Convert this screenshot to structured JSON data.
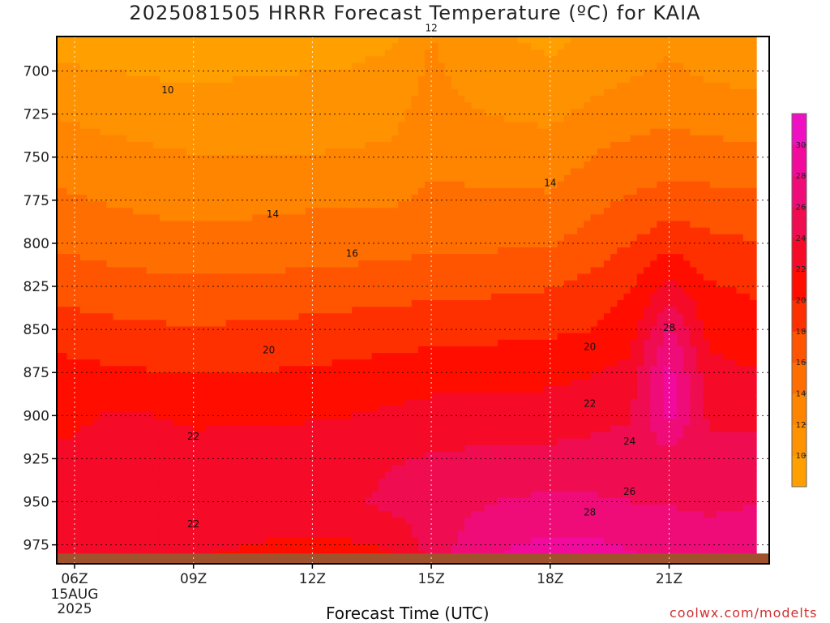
{
  "title": "2025081505 HRRR Forecast Temperature (ºC) for KAIA",
  "xlabel": "Forecast Time (UTC)",
  "credit": "coolwx.com/modelts",
  "chart_data": {
    "type": "heatmap",
    "title": "2025081505 HRRR Forecast Temperature (ºC) for KAIA",
    "xlabel": "Forecast Time (UTC)",
    "ylabel": "",
    "x_hours": [
      5,
      6,
      7,
      8,
      9,
      10,
      11,
      12,
      13,
      14,
      15,
      16,
      17,
      18,
      19,
      20,
      21,
      22,
      23
    ],
    "x_ticks": [
      {
        "hour": 6,
        "label": "06Z",
        "sub": [
          "15AUG",
          "2025"
        ]
      },
      {
        "hour": 9,
        "label": "09Z",
        "sub": []
      },
      {
        "hour": 12,
        "label": "12Z",
        "sub": []
      },
      {
        "hour": 15,
        "label": "15Z",
        "sub": []
      },
      {
        "hour": 18,
        "label": "18Z",
        "sub": []
      },
      {
        "hour": 21,
        "label": "21Z",
        "sub": []
      }
    ],
    "y_ticks": [
      700,
      725,
      750,
      775,
      800,
      825,
      850,
      875,
      900,
      925,
      950,
      975
    ],
    "ylim": [
      680,
      986
    ],
    "y_inverted": true,
    "ground_level_hPa": 980,
    "grid": true,
    "contour_interval": 2,
    "colorbar": {
      "labels": [
        10,
        12,
        14,
        16,
        18,
        20,
        22,
        24,
        26,
        28,
        30
      ],
      "range": [
        8,
        32
      ],
      "colors": [
        "#ffa000",
        "#ff9200",
        "#ff8400",
        "#ff6e00",
        "#ff5400",
        "#ff3000",
        "#ff0e00",
        "#f50a28",
        "#ef0c50",
        "#f00c78",
        "#f20a9c",
        "#ee10c2",
        "#f81ee4"
      ]
    },
    "contour_labels": [
      {
        "text": "10",
        "hour": 8.35,
        "p": 711
      },
      {
        "text": "12",
        "hour": 15.0,
        "p": 675
      },
      {
        "text": "14",
        "hour": 11.0,
        "p": 783
      },
      {
        "text": "14",
        "hour": 18.0,
        "p": 765
      },
      {
        "text": "16",
        "hour": 13.0,
        "p": 806
      },
      {
        "text": "20",
        "hour": 10.9,
        "p": 862
      },
      {
        "text": "20",
        "hour": 19.0,
        "p": 860
      },
      {
        "text": "22",
        "hour": 9.0,
        "p": 912
      },
      {
        "text": "22",
        "hour": 19.0,
        "p": 893
      },
      {
        "text": "22",
        "hour": 9.0,
        "p": 963
      },
      {
        "text": "24",
        "hour": 20.0,
        "p": 915
      },
      {
        "text": "26",
        "hour": 20.0,
        "p": 944
      },
      {
        "text": "28",
        "hour": 19.0,
        "p": 956
      },
      {
        "text": "28",
        "hour": 21.0,
        "p": 849
      }
    ],
    "profiles": [
      {
        "hour": 5,
        "levels": [
          700,
          725,
          750,
          775,
          800,
          825,
          850,
          875,
          900,
          925,
          950,
          975
        ],
        "temps": [
          10.4,
          12.1,
          13.4,
          14.5,
          15.8,
          17.6,
          19.3,
          21.0,
          21.8,
          22.1,
          22.5,
          23.0
        ]
      },
      {
        "hour": 6,
        "levels": [
          700,
          725,
          750,
          775,
          800,
          825,
          850,
          875,
          900,
          925,
          950,
          975
        ],
        "temps": [
          10.2,
          11.7,
          13.0,
          14.2,
          15.5,
          17.1,
          18.8,
          20.6,
          21.8,
          22.2,
          22.7,
          22.6
        ]
      },
      {
        "hour": 7,
        "levels": [
          700,
          725,
          750,
          775,
          800,
          825,
          850,
          875,
          900,
          925,
          950,
          975
        ],
        "temps": [
          10.0,
          11.3,
          12.7,
          13.8,
          15.1,
          16.8,
          18.5,
          20.3,
          22.1,
          22.7,
          22.9,
          22.5
        ]
      },
      {
        "hour": 8,
        "levels": [
          700,
          725,
          750,
          775,
          800,
          825,
          850,
          875,
          900,
          925,
          950,
          975
        ],
        "temps": [
          9.8,
          11.0,
          12.4,
          13.5,
          14.8,
          16.6,
          18.3,
          20.1,
          22.0,
          22.8,
          23.0,
          22.4
        ]
      },
      {
        "hour": 9,
        "levels": [
          700,
          725,
          750,
          775,
          800,
          825,
          850,
          875,
          900,
          925,
          950,
          975
        ],
        "temps": [
          9.6,
          10.8,
          12.1,
          13.3,
          14.6,
          16.4,
          18.1,
          19.9,
          21.7,
          22.6,
          23.0,
          22.3
        ]
      },
      {
        "hour": 10,
        "levels": [
          700,
          725,
          750,
          775,
          800,
          825,
          850,
          875,
          900,
          925,
          950,
          975
        ],
        "temps": [
          9.8,
          10.8,
          12.0,
          13.4,
          14.7,
          16.5,
          18.3,
          20.1,
          21.8,
          22.6,
          23.2,
          22.1
        ]
      },
      {
        "hour": 11,
        "levels": [
          700,
          725,
          750,
          775,
          800,
          825,
          850,
          875,
          900,
          925,
          950,
          975
        ],
        "temps": [
          9.9,
          10.9,
          12.0,
          13.6,
          14.8,
          16.6,
          18.4,
          20.1,
          21.8,
          22.5,
          23.2,
          21.8
        ]
      },
      {
        "hour": 12,
        "levels": [
          700,
          725,
          750,
          775,
          800,
          825,
          850,
          875,
          900,
          925,
          950,
          975
        ],
        "temps": [
          10.0,
          11.0,
          12.1,
          13.7,
          15.0,
          16.8,
          18.6,
          20.3,
          21.9,
          22.7,
          23.2,
          21.7
        ]
      },
      {
        "hour": 13,
        "levels": [
          700,
          725,
          750,
          775,
          800,
          825,
          850,
          875,
          900,
          925,
          950,
          975
        ],
        "temps": [
          10.1,
          11.1,
          12.2,
          13.8,
          15.0,
          17.0,
          18.8,
          20.5,
          22.0,
          23.2,
          23.6,
          21.8
        ]
      },
      {
        "hour": 14,
        "levels": [
          700,
          725,
          750,
          775,
          800,
          825,
          850,
          875,
          900,
          925,
          950,
          975
        ],
        "temps": [
          10.5,
          11.5,
          12.4,
          13.8,
          15.2,
          17.2,
          19.0,
          20.8,
          22.4,
          23.8,
          24.6,
          22.3
        ]
      },
      {
        "hour": 15,
        "levels": [
          700,
          725,
          750,
          775,
          800,
          825,
          850,
          875,
          900,
          925,
          950,
          975
        ],
        "temps": [
          12.4,
          12.8,
          13.6,
          14.4,
          15.5,
          17.4,
          19.2,
          21.1,
          22.8,
          24.2,
          25.2,
          24.8
        ]
      },
      {
        "hour": 16,
        "levels": [
          700,
          725,
          750,
          775,
          800,
          825,
          850,
          875,
          900,
          925,
          950,
          975
        ],
        "temps": [
          11.3,
          12.2,
          13.4,
          14.3,
          15.6,
          17.5,
          19.3,
          21.2,
          22.8,
          24.4,
          25.6,
          26.8
        ]
      },
      {
        "hour": 17,
        "levels": [
          700,
          725,
          750,
          775,
          800,
          825,
          850,
          875,
          900,
          925,
          950,
          975
        ],
        "temps": [
          10.8,
          11.8,
          13.2,
          14.3,
          15.7,
          17.6,
          19.5,
          21.3,
          22.9,
          24.5,
          26.2,
          27.9
        ]
      },
      {
        "hour": 18,
        "levels": [
          700,
          725,
          750,
          775,
          800,
          825,
          850,
          875,
          900,
          925,
          950,
          975
        ],
        "temps": [
          10.4,
          11.6,
          12.8,
          14.3,
          15.8,
          17.9,
          19.6,
          21.4,
          23.0,
          24.6,
          26.4,
          28.4
        ]
      },
      {
        "hour": 19,
        "levels": [
          700,
          725,
          750,
          775,
          800,
          825,
          850,
          875,
          900,
          925,
          950,
          975
        ],
        "temps": [
          11.2,
          12.4,
          14.0,
          15.4,
          16.8,
          18.6,
          20.0,
          21.9,
          23.4,
          24.7,
          26.3,
          28.4
        ]
      },
      {
        "hour": 20,
        "levels": [
          700,
          725,
          750,
          775,
          800,
          825,
          850,
          875,
          900,
          925,
          950,
          975
        ],
        "temps": [
          11.7,
          13.0,
          14.8,
          16.2,
          18.0,
          19.8,
          21.0,
          22.6,
          23.9,
          24.7,
          26.0,
          27.8
        ]
      },
      {
        "hour": 21,
        "levels": [
          700,
          725,
          750,
          775,
          800,
          825,
          850,
          875,
          900,
          925,
          950,
          975
        ],
        "temps": [
          12.4,
          13.6,
          15.0,
          16.8,
          19.4,
          22.6,
          26.5,
          28.8,
          28.6,
          25.2,
          25.9,
          26.8
        ]
      },
      {
        "hour": 22,
        "levels": [
          700,
          725,
          750,
          775,
          800,
          825,
          850,
          875,
          900,
          925,
          950,
          975
        ],
        "temps": [
          11.6,
          13.1,
          14.8,
          16.7,
          18.5,
          20.2,
          21.4,
          22.6,
          23.6,
          24.8,
          25.8,
          26.4
        ]
      },
      {
        "hour": 23,
        "levels": [
          700,
          725,
          750,
          775,
          800,
          825,
          850,
          875,
          900,
          925,
          950,
          975
        ],
        "temps": [
          11.4,
          12.9,
          14.6,
          16.4,
          18.2,
          19.7,
          20.9,
          22.2,
          23.5,
          24.7,
          25.9,
          26.7
        ]
      }
    ]
  }
}
